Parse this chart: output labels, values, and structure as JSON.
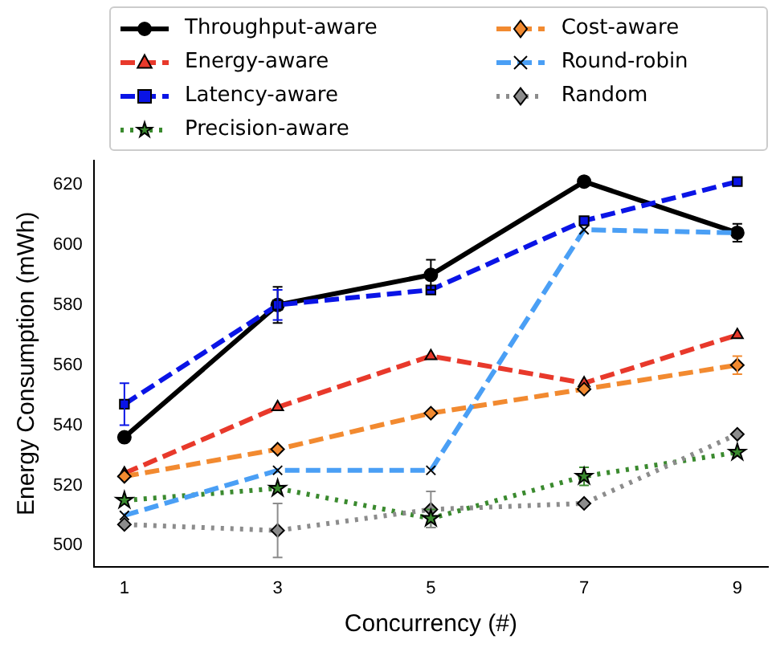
{
  "chart_data": {
    "type": "line",
    "xlabel": "Concurrency (#)",
    "ylabel": "Energy Consumption (mWh)",
    "x": [
      1,
      3,
      5,
      7,
      9
    ],
    "xlim": [
      0.6,
      9.4
    ],
    "xticks": [
      1,
      3,
      5,
      7,
      9
    ],
    "ylim": [
      493,
      628
    ],
    "yticks": [
      500,
      520,
      540,
      560,
      580,
      600,
      620
    ],
    "grid": false,
    "legend": "top",
    "series": [
      {
        "name": "Throughput-aware",
        "color": "#000000",
        "marker": "circle",
        "line_style": "solid",
        "values": [
          536,
          580,
          590,
          621,
          604
        ],
        "errors": [
          null,
          6,
          5,
          null,
          3
        ]
      },
      {
        "name": "Energy-aware",
        "color": "#e8392b",
        "marker": "triangle",
        "line_style": "dashed",
        "values": [
          524,
          546,
          563,
          554,
          570
        ]
      },
      {
        "name": "Latency-aware",
        "color": "#0a14e6",
        "marker": "square",
        "line_style": "dashed",
        "values": [
          547,
          580,
          585,
          608,
          621
        ],
        "errors": [
          7,
          5,
          null,
          null,
          null
        ]
      },
      {
        "name": "Precision-aware",
        "color": "#3a8a2e",
        "marker": "star",
        "line_style": "dotted",
        "values": [
          515,
          519,
          509,
          523,
          531
        ],
        "errors": [
          null,
          null,
          3,
          3,
          null
        ]
      },
      {
        "name": "Cost-aware",
        "color": "#f28a30",
        "marker": "diamond",
        "line_style": "dashed",
        "values": [
          523,
          532,
          544,
          552,
          560
        ],
        "errors": [
          null,
          null,
          null,
          null,
          3
        ]
      },
      {
        "name": "Round-robin",
        "color": "#4a9ff5",
        "marker": "cross",
        "line_style": "dashed",
        "values": [
          510,
          525,
          525,
          605,
          604
        ]
      },
      {
        "name": "Random",
        "color": "#8c8c8c",
        "marker": "diamond",
        "line_style": "dotted",
        "values": [
          507,
          505,
          512,
          514,
          537
        ],
        "errors": [
          null,
          9,
          6,
          null,
          null
        ]
      }
    ]
  }
}
